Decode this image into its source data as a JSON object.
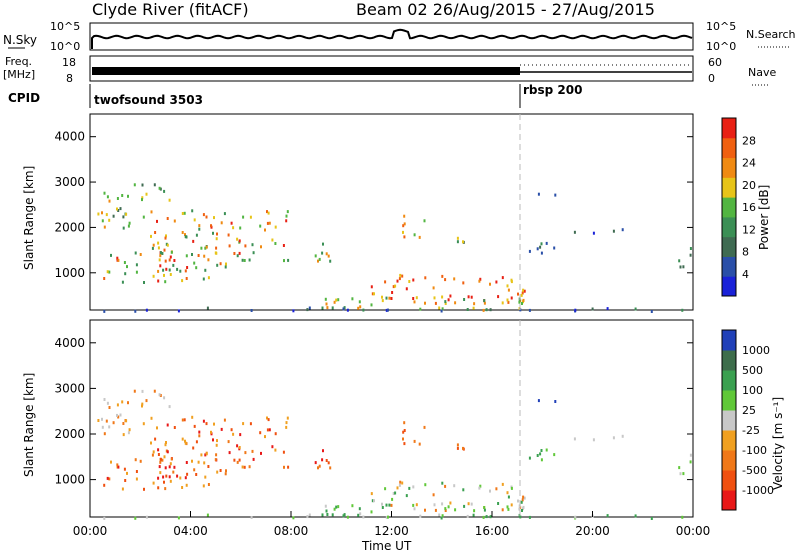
{
  "header": {
    "station": "Clyde River (fitACF)",
    "beam_dates": "Beam 02 26/Aug/2015 - 27/Aug/2015"
  },
  "sky_panel": {
    "left_label": "N.Sky",
    "right_label": "N.Search",
    "left_ticks": [
      "10^5",
      "10^0"
    ],
    "right_ticks": [
      "10^5",
      "10^0"
    ]
  },
  "freq_panel": {
    "left_label_1": "Freq.",
    "left_label_2": "[MHz]",
    "right_label": "Nave",
    "left_ticks": [
      "18",
      "8"
    ],
    "right_ticks": [
      "60",
      "0"
    ]
  },
  "cpid_panel": {
    "label": "CPID",
    "segments": [
      "twofsound 3503",
      "rbsp 200"
    ]
  },
  "colors": {
    "power_scale": [
      "#1a22d8",
      "#2a4fa8",
      "#3f6b52",
      "#3b8f55",
      "#52b541",
      "#e7c418",
      "#f08a12",
      "#f06010",
      "#e82014"
    ],
    "velocity_scale": [
      "#2040b8",
      "#3d6d4b",
      "#3aa050",
      "#60c838",
      "#c8c8c8",
      "#f0a020",
      "#f07818",
      "#f05010",
      "#e81818"
    ]
  },
  "chart_data": [
    {
      "type": "heatmap",
      "name": "power",
      "ylabel": "Slant Range [km]",
      "ylim": [
        180,
        4500
      ],
      "yticks": [
        "1000",
        "2000",
        "3000",
        "4000"
      ],
      "colorbar_label": "Power [dB]",
      "colorbar_ticks": [
        "4",
        "8",
        "12",
        "16",
        "20",
        "24",
        "28"
      ],
      "colorbar_range": [
        0,
        32
      ]
    },
    {
      "type": "heatmap",
      "name": "velocity",
      "ylabel": "Slant Range [km]",
      "ylim": [
        180,
        4500
      ],
      "yticks": [
        "1000",
        "2000",
        "3000",
        "4000"
      ],
      "xlabel": "Time UT",
      "xticks": [
        "00:00",
        "04:00",
        "08:00",
        "12:00",
        "16:00",
        "20:00",
        "00:00"
      ],
      "colorbar_label": "Velocity [m s⁻¹]",
      "colorbar_ticks": [
        "1000",
        "500",
        "100",
        "25",
        "-25",
        "-100",
        "-500",
        "-1000"
      ]
    }
  ]
}
